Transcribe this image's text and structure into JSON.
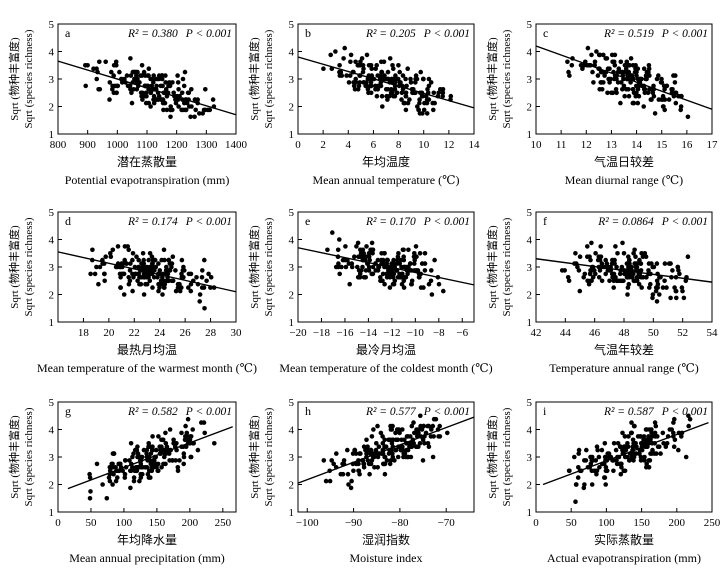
{
  "chart_data": [
    {
      "letter": "a",
      "type": "scatter",
      "stats": {
        "r2": "R² = 0.380",
        "p": "P < 0.001"
      },
      "ylabel_cn": "Sqrt (物种丰富度)",
      "ylabel_en": "Sqrt (species richness)",
      "xlabel_cn": "潜在蒸散量",
      "xlabel_en": "Potential evapotranspiration (mm)",
      "xlim": [
        800,
        1400
      ],
      "ylim": [
        1,
        5
      ],
      "xticks": [
        "800",
        "900",
        "1000",
        "1100",
        "1200",
        "1300",
        "1400"
      ],
      "yticks": [
        "1",
        "2",
        "3",
        "4",
        "5"
      ],
      "fit": {
        "x": [
          800,
          1400
        ],
        "y": [
          3.65,
          1.7
        ]
      },
      "points_mode": "negative",
      "seed": 11
    },
    {
      "letter": "b",
      "type": "scatter",
      "stats": {
        "r2": "R² = 0.205",
        "p": "P < 0.001"
      },
      "ylabel_cn": "Sqrt (物种丰富度)",
      "ylabel_en": "Sqrt (species richness)",
      "xlabel_cn": "年均温度",
      "xlabel_en": "Mean annual temperature (℃)",
      "xlim": [
        0,
        14
      ],
      "ylim": [
        1,
        5
      ],
      "xticks": [
        "0",
        "2",
        "4",
        "6",
        "8",
        "10",
        "12",
        "14"
      ],
      "yticks": [
        "1",
        "2",
        "3",
        "4",
        "5"
      ],
      "fit": {
        "x": [
          0,
          14
        ],
        "y": [
          3.8,
          1.95
        ]
      },
      "points_mode": "negative",
      "seed": 23
    },
    {
      "letter": "c",
      "type": "scatter",
      "stats": {
        "r2": "R² = 0.519",
        "p": "P < 0.001"
      },
      "ylabel_cn": "Sqrt (物种丰富度)",
      "ylabel_en": "Sqrt (species richness)",
      "xlabel_cn": "气温日较差",
      "xlabel_en": "Mean diurnal range (℃)",
      "xlim": [
        10,
        17
      ],
      "ylim": [
        1,
        5
      ],
      "xticks": [
        "10",
        "11",
        "12",
        "13",
        "14",
        "15",
        "16",
        "17"
      ],
      "yticks": [
        "1",
        "2",
        "3",
        "4",
        "5"
      ],
      "fit": {
        "x": [
          10,
          17
        ],
        "y": [
          4.2,
          1.9
        ]
      },
      "points_mode": "negative",
      "seed": 37
    },
    {
      "letter": "d",
      "type": "scatter",
      "stats": {
        "r2": "R² = 0.174",
        "p": "P < 0.001"
      },
      "ylabel_cn": "Sqrt (物种丰富度)",
      "ylabel_en": "Sqrt (species richness)",
      "xlabel_cn": "最热月均温",
      "xlabel_en": "Mean temperature of the warmest month (℃)",
      "xlim": [
        16,
        30
      ],
      "ylim": [
        1,
        5
      ],
      "xticks": [
        "18",
        "20",
        "22",
        "24",
        "26",
        "28",
        "30"
      ],
      "yticks": [
        "1",
        "2",
        "3",
        "4",
        "5"
      ],
      "fit": {
        "x": [
          16,
          30
        ],
        "y": [
          3.55,
          2.1
        ]
      },
      "points_mode": "negative",
      "seed": 41
    },
    {
      "letter": "e",
      "type": "scatter",
      "stats": {
        "r2": "R² = 0.170",
        "p": "P < 0.001"
      },
      "ylabel_cn": "Sqrt (物种丰富度)",
      "ylabel_en": "Sqrt (species richness)",
      "xlabel_cn": "最冷月均温",
      "xlabel_en": "Mean temperature of the coldest month (℃)",
      "xlim": [
        -20,
        -5
      ],
      "ylim": [
        1,
        5
      ],
      "xticks": [
        "−20",
        "−18",
        "−16",
        "−14",
        "−12",
        "−10",
        "−8",
        "−6"
      ],
      "xtick_values": [
        -20,
        -18,
        -16,
        -14,
        -12,
        -10,
        -8,
        -6
      ],
      "yticks": [
        "1",
        "2",
        "3",
        "4",
        "5"
      ],
      "fit": {
        "x": [
          -20,
          -5
        ],
        "y": [
          3.7,
          2.35
        ]
      },
      "points_mode": "negative",
      "seed": 53
    },
    {
      "letter": "f",
      "type": "scatter",
      "stats": {
        "r2": "R² = 0.0864",
        "p": "P < 0.001"
      },
      "ylabel_cn": "Sqrt (物种丰富度)",
      "ylabel_en": "Sqrt (species richness)",
      "xlabel_cn": "气温年较差",
      "xlabel_en": "Temperature annual range (℃)",
      "xlim": [
        42,
        54
      ],
      "ylim": [
        1,
        5
      ],
      "xticks": [
        "42",
        "44",
        "46",
        "48",
        "50",
        "52",
        "54"
      ],
      "yticks": [
        "1",
        "2",
        "3",
        "4",
        "5"
      ],
      "fit": {
        "x": [
          42,
          54
        ],
        "y": [
          3.3,
          2.45
        ]
      },
      "points_mode": "negative",
      "seed": 67
    },
    {
      "letter": "g",
      "type": "scatter",
      "stats": {
        "r2": "R² = 0.582",
        "p": "P < 0.001"
      },
      "ylabel_cn": "Sqrt (物种丰富度)",
      "ylabel_en": "Sqrt (species richness)",
      "xlabel_cn": "年均降水量",
      "xlabel_en": "Mean annual precipitation (mm)",
      "xlim": [
        0,
        270
      ],
      "ylim": [
        1,
        5
      ],
      "xticks": [
        "0",
        "50",
        "100",
        "150",
        "200",
        "250"
      ],
      "xtick_values": [
        0,
        50,
        100,
        150,
        200,
        250
      ],
      "yticks": [
        "1",
        "2",
        "3",
        "4",
        "5"
      ],
      "fit": {
        "x": [
          15,
          265
        ],
        "y": [
          1.85,
          4.1
        ]
      },
      "points_mode": "positive",
      "seed": 79
    },
    {
      "letter": "h",
      "type": "scatter",
      "stats": {
        "r2": "R² = 0.577",
        "p": "P < 0.001"
      },
      "ylabel_cn": "Sqrt (物种丰富度)",
      "ylabel_en": "Sqrt (species richness)",
      "xlabel_cn": "湿润指数",
      "xlabel_en": "Moisture index",
      "xlim": [
        -102,
        -64
      ],
      "ylim": [
        1,
        5
      ],
      "xticks": [
        "−100",
        "−90",
        "−80",
        "−70"
      ],
      "xtick_values": [
        -100,
        -90,
        -80,
        -70
      ],
      "yticks": [
        "1",
        "2",
        "3",
        "4",
        "5"
      ],
      "fit": {
        "x": [
          -102,
          -64
        ],
        "y": [
          2.05,
          4.45
        ]
      },
      "points_mode": "positive",
      "seed": 83
    },
    {
      "letter": "i",
      "type": "scatter",
      "stats": {
        "r2": "R² = 0.587",
        "p": "P < 0.001"
      },
      "ylabel_cn": "Sqrt (物种丰富度)",
      "ylabel_en": "Sqrt (species richness)",
      "xlabel_cn": "实际蒸散量",
      "xlabel_en": "Actual evapotranspiration (mm)",
      "xlim": [
        0,
        250
      ],
      "ylim": [
        1,
        5
      ],
      "xticks": [
        "0",
        "50",
        "100",
        "150",
        "200",
        "250"
      ],
      "xtick_values": [
        0,
        50,
        100,
        150,
        200,
        250
      ],
      "yticks": [
        "1",
        "2",
        "3",
        "4",
        "5"
      ],
      "fit": {
        "x": [
          10,
          245
        ],
        "y": [
          2.0,
          4.25
        ]
      },
      "points_mode": "positive",
      "seed": 97
    }
  ]
}
